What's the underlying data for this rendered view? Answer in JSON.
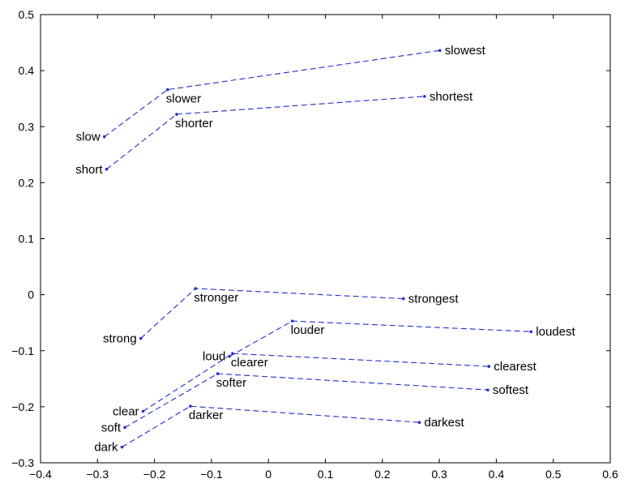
{
  "colors": {
    "series": "#1f2fd0",
    "axis": "#000000"
  },
  "chart_data": {
    "type": "scatter",
    "title": "",
    "xlabel": "",
    "ylabel": "",
    "xlim": [
      -0.4,
      0.6
    ],
    "ylim": [
      -0.3,
      0.5
    ],
    "xticks": [
      "−0.4",
      "−0.3",
      "−0.2",
      "−0.1",
      "0",
      "0.1",
      "0.2",
      "0.3",
      "0.4",
      "0.5",
      "0.6"
    ],
    "xtick_values": [
      -0.4,
      -0.3,
      -0.2,
      -0.1,
      0,
      0.1,
      0.2,
      0.3,
      0.4,
      0.5,
      0.6
    ],
    "yticks": [
      "−0.3",
      "−0.2",
      "−0.1",
      "0",
      "0.1",
      "0.2",
      "0.3",
      "0.4",
      "0.5"
    ],
    "ytick_values": [
      -0.3,
      -0.2,
      -0.1,
      0,
      0.1,
      0.2,
      0.3,
      0.4,
      0.5
    ],
    "grid": false,
    "legend": "none",
    "series": [
      {
        "points": [
          {
            "word": "slow",
            "x": -0.288,
            "y": 0.282,
            "label_side": "left"
          },
          {
            "word": "slower",
            "x": -0.177,
            "y": 0.366,
            "label_side": "below-right"
          },
          {
            "word": "slowest",
            "x": 0.301,
            "y": 0.436,
            "label_side": "right"
          }
        ]
      },
      {
        "points": [
          {
            "word": "short",
            "x": -0.284,
            "y": 0.224,
            "label_side": "left"
          },
          {
            "word": "shorter",
            "x": -0.161,
            "y": 0.322,
            "label_side": "below-right"
          },
          {
            "word": "shortest",
            "x": 0.274,
            "y": 0.354,
            "label_side": "right"
          }
        ]
      },
      {
        "points": [
          {
            "word": "strong",
            "x": -0.224,
            "y": -0.078,
            "label_side": "left"
          },
          {
            "word": "stronger",
            "x": -0.128,
            "y": 0.011,
            "label_side": "below-right"
          },
          {
            "word": "strongest",
            "x": 0.237,
            "y": -0.007,
            "label_side": "right"
          }
        ]
      },
      {
        "points": [
          {
            "word": "loud",
            "x": -0.068,
            "y": -0.11,
            "label_side": "left"
          },
          {
            "word": "louder",
            "x": 0.042,
            "y": -0.047,
            "label_side": "below-right"
          },
          {
            "word": "loudest",
            "x": 0.461,
            "y": -0.066,
            "label_side": "right"
          }
        ]
      },
      {
        "points": [
          {
            "word": "clear",
            "x": -0.22,
            "y": -0.208,
            "label_side": "left"
          },
          {
            "word": "clearer",
            "x": -0.063,
            "y": -0.105,
            "label_side": "below-right"
          },
          {
            "word": "clearest",
            "x": 0.387,
            "y": -0.128,
            "label_side": "right"
          }
        ]
      },
      {
        "points": [
          {
            "word": "soft",
            "x": -0.252,
            "y": -0.237,
            "label_side": "left"
          },
          {
            "word": "softer",
            "x": -0.089,
            "y": -0.141,
            "label_side": "below-right"
          },
          {
            "word": "softest",
            "x": 0.385,
            "y": -0.17,
            "label_side": "right"
          }
        ]
      },
      {
        "points": [
          {
            "word": "dark",
            "x": -0.257,
            "y": -0.272,
            "label_side": "left"
          },
          {
            "word": "darker",
            "x": -0.137,
            "y": -0.199,
            "label_side": "below-right"
          },
          {
            "word": "darkest",
            "x": 0.265,
            "y": -0.228,
            "label_side": "right"
          }
        ]
      }
    ]
  }
}
